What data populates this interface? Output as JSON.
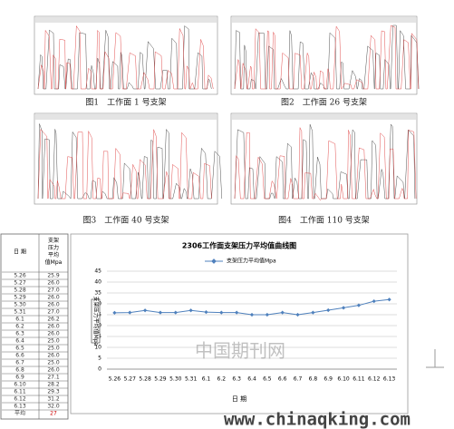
{
  "figures": [
    {
      "caption": "图1　工作面 1 号支架"
    },
    {
      "caption": "图2　工作面 26 号支架"
    },
    {
      "caption": "图3　工作面 40 号支架"
    },
    {
      "caption": "图4　工作面 110 号支架"
    }
  ],
  "table": {
    "header": [
      "日 期",
      "支架压力平均值Mpa"
    ],
    "rows": [
      [
        "5.26",
        "25.9"
      ],
      [
        "5.27",
        "26.0"
      ],
      [
        "5.28",
        "27.0"
      ],
      [
        "5.29",
        "26.0"
      ],
      [
        "5.30",
        "26.0"
      ],
      [
        "5.31",
        "27.0"
      ],
      [
        "6.1",
        "26.2"
      ],
      [
        "6.2",
        "26.0"
      ],
      [
        "6.3",
        "26.0"
      ],
      [
        "6.4",
        "25.0"
      ],
      [
        "6.5",
        "25.0"
      ],
      [
        "6.6",
        "26.0"
      ],
      [
        "6.7",
        "25.0"
      ],
      [
        "6.8",
        "26.0"
      ],
      [
        "6.9",
        "27.1"
      ],
      [
        "6.10",
        "28.2"
      ],
      [
        "6.11",
        "29.3"
      ],
      [
        "6.12",
        "31.2"
      ],
      [
        "6.13",
        "32.0"
      ],
      [
        "平均",
        "27"
      ]
    ]
  },
  "chart_data": {
    "type": "line",
    "title": "2306工作面支架压力平均值曲线图",
    "ylabel": "支架压力平均值Mpa",
    "xlabel": "日 期",
    "categories": [
      "5.26",
      "5.27",
      "5.28",
      "5.29",
      "5.30",
      "5.31",
      "6.1",
      "6.2",
      "6.3",
      "6.4",
      "6.5",
      "6.6",
      "6.7",
      "6.8",
      "6.9",
      "6.10",
      "6.11",
      "6.12",
      "6.13"
    ],
    "series": [
      {
        "name": "支架压力平均值Mpa",
        "color": "#4f81bd",
        "values": [
          25.9,
          26.0,
          27.0,
          26.0,
          26.0,
          27.0,
          26.2,
          26.0,
          26.0,
          25.0,
          25.0,
          26.0,
          25.0,
          26.0,
          27.1,
          28.2,
          29.3,
          31.2,
          32.0
        ]
      }
    ],
    "ylim": [
      0,
      45
    ],
    "yticks": [
      0,
      5,
      10,
      15,
      20,
      25,
      30,
      35,
      40,
      45
    ],
    "grid": true,
    "legend": "top"
  },
  "watermark": "中国期刊网",
  "site": "www.chinaqking.com"
}
